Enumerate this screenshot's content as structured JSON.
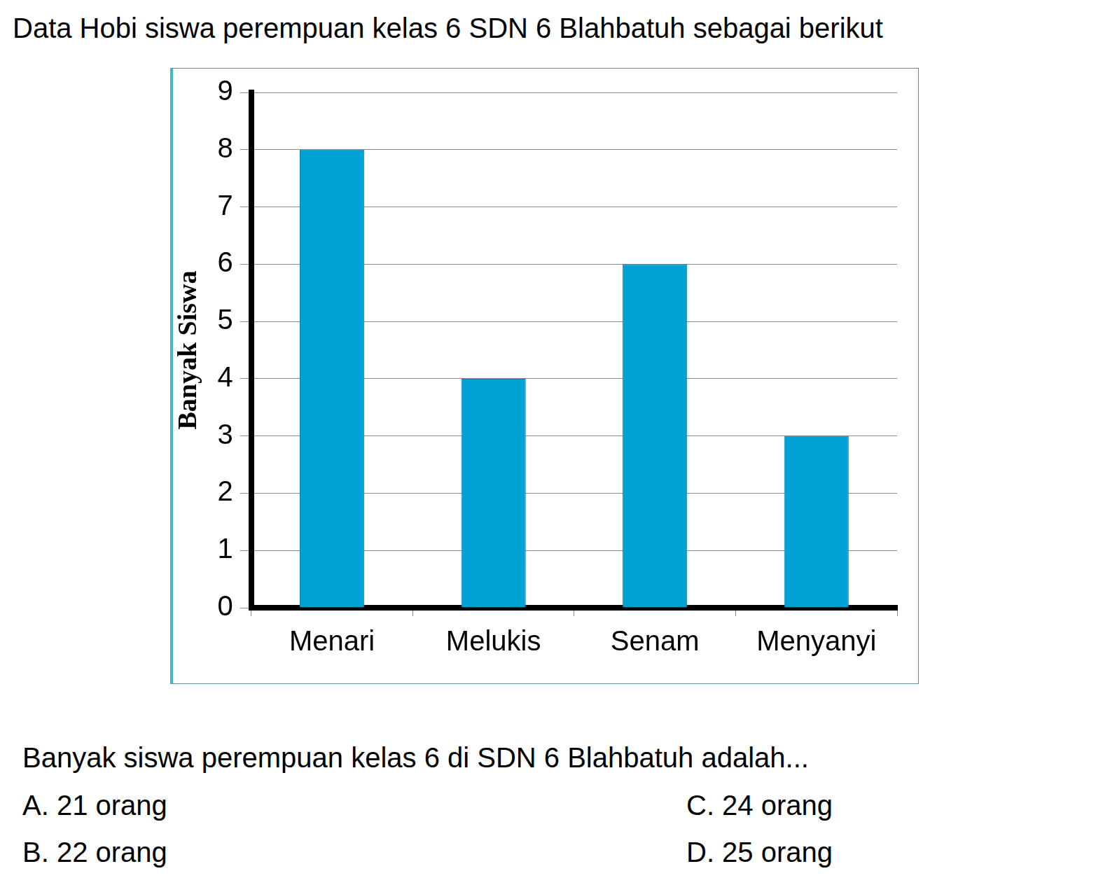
{
  "chart_data": {
    "type": "bar",
    "title": "Data Hobi siswa perempuan kelas 6 SDN 6 Blahbatuh sebagai berikut",
    "ylabel": "Banyak Siswa",
    "categories": [
      "Menari",
      "Melukis",
      "Senam",
      "Menyanyi"
    ],
    "values": [
      8,
      4,
      6,
      3
    ],
    "color": "#00a2d6",
    "ylim": [
      0,
      9
    ],
    "yticks": [
      0,
      1,
      2,
      3,
      4,
      5,
      6,
      7,
      8,
      9
    ],
    "grid": true
  },
  "question": "Banyak siswa perempuan kelas 6 di SDN 6 Blahbatuh adalah...",
  "options": [
    "A. 21 orang",
    "B. 22 orang",
    "C. 24 orang",
    "D. 25 orang"
  ]
}
